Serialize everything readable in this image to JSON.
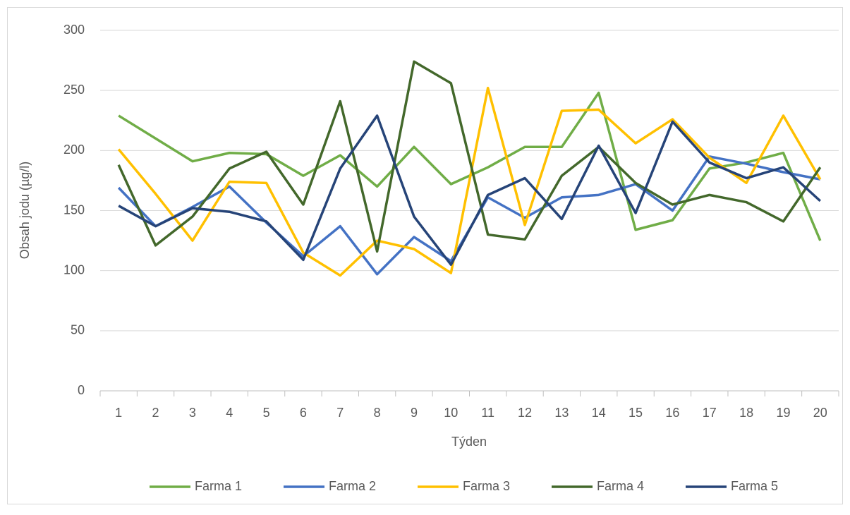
{
  "chart_data": {
    "type": "line",
    "x_label": "Týden",
    "y_label": "Obsah jodu (µg/l)",
    "categories": [
      "1",
      "2",
      "3",
      "4",
      "5",
      "6",
      "7",
      "8",
      "9",
      "10",
      "11",
      "12",
      "13",
      "14",
      "15",
      "16",
      "17",
      "18",
      "19",
      "20"
    ],
    "series": [
      {
        "name": "Farma 1",
        "color": "#70ad47",
        "values": [
          229,
          210,
          191,
          198,
          197,
          179,
          196,
          170,
          203,
          172,
          186,
          203,
          203,
          248,
          134,
          142,
          185,
          190,
          198,
          125
        ]
      },
      {
        "name": "Farma 2",
        "color": "#4472c4",
        "values": [
          169,
          137,
          153,
          170,
          140,
          112,
          137,
          97,
          128,
          108,
          161,
          144,
          161,
          163,
          172,
          150,
          195,
          189,
          182,
          176
        ]
      },
      {
        "name": "Farma 3",
        "color": "#ffc000",
        "values": [
          201,
          164,
          125,
          174,
          173,
          115,
          96,
          125,
          118,
          98,
          252,
          138,
          233,
          234,
          206,
          226,
          194,
          173,
          229,
          176
        ]
      },
      {
        "name": "Farma 4",
        "color": "#43682b",
        "values": [
          188,
          121,
          145,
          185,
          199,
          155,
          241,
          116,
          274,
          256,
          130,
          126,
          179,
          203,
          173,
          155,
          163,
          157,
          141,
          186
        ]
      },
      {
        "name": "Farma 5",
        "color": "#264478",
        "values": [
          154,
          137,
          152,
          149,
          141,
          109,
          185,
          229,
          145,
          105,
          163,
          177,
          143,
          204,
          148,
          224,
          190,
          177,
          186,
          158
        ]
      }
    ],
    "ylim": [
      0,
      300
    ],
    "yticks": [
      0,
      50,
      100,
      150,
      200,
      250,
      300
    ],
    "grid": true,
    "legend": "bottom"
  }
}
